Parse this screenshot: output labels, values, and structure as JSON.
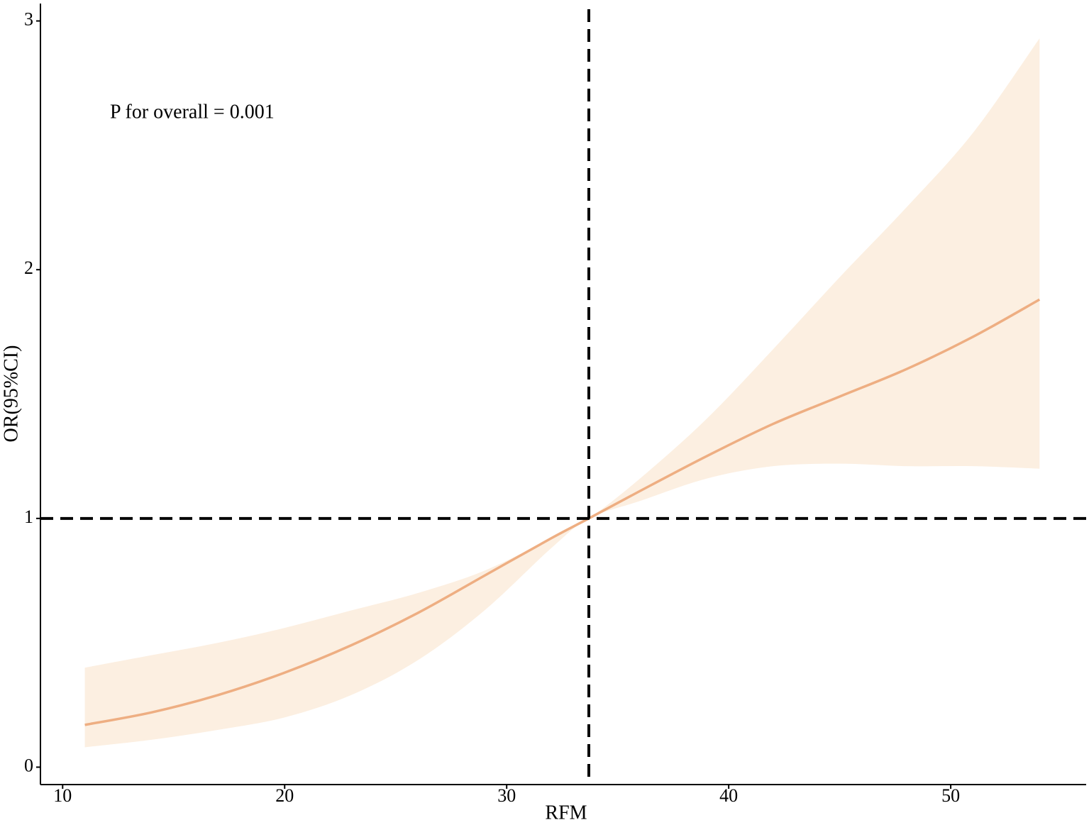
{
  "chart_data": {
    "type": "line",
    "annotation": "P for overall = 0.001",
    "x_label": "RFM",
    "y_label": "OR(95%CI)",
    "x": [
      11,
      14,
      17,
      20,
      23,
      26,
      29,
      32,
      33.7,
      36,
      39,
      42,
      45,
      48,
      51,
      54
    ],
    "series": [
      {
        "color": "#eeae82",
        "band_color": "#fcefe1",
        "values": [
          0.17,
          0.22,
          0.29,
          0.38,
          0.49,
          0.62,
          0.77,
          0.92,
          1.0,
          1.11,
          1.25,
          1.38,
          1.49,
          1.6,
          1.73,
          1.88
        ],
        "lower": [
          0.08,
          0.11,
          0.15,
          0.2,
          0.29,
          0.43,
          0.63,
          0.88,
          1.0,
          1.07,
          1.16,
          1.21,
          1.22,
          1.21,
          1.21,
          1.2
        ],
        "upper": [
          0.4,
          0.45,
          0.5,
          0.56,
          0.63,
          0.7,
          0.79,
          0.92,
          1.0,
          1.16,
          1.4,
          1.68,
          1.97,
          2.25,
          2.55,
          2.93
        ]
      }
    ],
    "ref_x": 33.7,
    "ref_y": 1,
    "xlim": [
      9,
      56.1
    ],
    "ylim": [
      -0.07,
      3.07
    ],
    "xticks": [
      10,
      20,
      30,
      40,
      50
    ],
    "yticks": [
      0,
      1,
      2,
      3
    ]
  }
}
